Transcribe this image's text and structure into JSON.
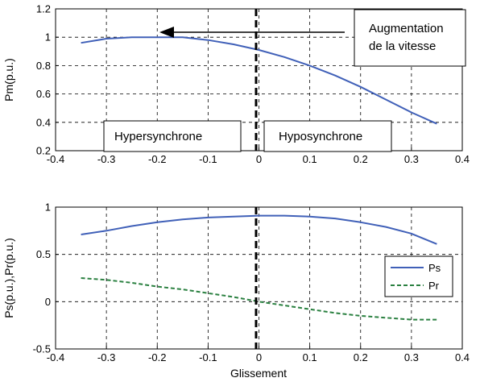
{
  "chart_data": [
    {
      "type": "line",
      "xlabel": "",
      "ylabel": "Pm(p.u.)",
      "xlim": [
        -0.4,
        0.4
      ],
      "ylim": [
        0.2,
        1.2
      ],
      "xticks": [
        "-0.4",
        "-0.3",
        "-0.2",
        "-0.1",
        "0",
        "0.1",
        "0.2",
        "0.3",
        "0.4"
      ],
      "yticks": [
        "0.2",
        "0.4",
        "0.6",
        "0.8",
        "1",
        "1.2"
      ],
      "grid": true,
      "series": [
        {
          "color": "#4060b8",
          "style": "solid",
          "x": [
            -0.35,
            -0.3,
            -0.25,
            -0.2,
            -0.15,
            -0.1,
            -0.05,
            0.0,
            0.05,
            0.1,
            0.15,
            0.2,
            0.25,
            0.3,
            0.35
          ],
          "y": [
            0.96,
            0.99,
            1.0,
            1.0,
            1.0,
            0.98,
            0.95,
            0.91,
            0.86,
            0.8,
            0.73,
            0.65,
            0.56,
            0.47,
            0.39
          ]
        }
      ],
      "annotations": {
        "speed_box": [
          "Augmentation",
          "de la vitesse"
        ],
        "left_region": "Hypersynchrone",
        "right_region": "Hyposynchrone"
      }
    },
    {
      "type": "line",
      "xlabel": "Glissement",
      "ylabel": "Ps(p.u.),Pr(p.u.)",
      "xlim": [
        -0.4,
        0.4
      ],
      "ylim": [
        -0.5,
        1.0
      ],
      "xticks": [
        "-0.4",
        "-0.3",
        "-0.2",
        "-0.1",
        "0",
        "0.1",
        "0.2",
        "0.3",
        "0.4"
      ],
      "yticks": [
        "-0.5",
        "0",
        "0.5",
        "1"
      ],
      "grid": true,
      "legend_position": "bottom-right",
      "series": [
        {
          "name": "Ps",
          "color": "#4060b8",
          "style": "solid",
          "x": [
            -0.35,
            -0.3,
            -0.25,
            -0.2,
            -0.15,
            -0.1,
            -0.05,
            0.0,
            0.05,
            0.1,
            0.15,
            0.2,
            0.25,
            0.3,
            0.35
          ],
          "y": [
            0.71,
            0.75,
            0.8,
            0.84,
            0.87,
            0.89,
            0.9,
            0.91,
            0.91,
            0.9,
            0.88,
            0.84,
            0.79,
            0.72,
            0.61
          ]
        },
        {
          "name": "Pr",
          "color": "#2a8040",
          "style": "dashed",
          "x": [
            -0.35,
            -0.3,
            -0.25,
            -0.2,
            -0.15,
            -0.1,
            -0.05,
            0.0,
            0.05,
            0.1,
            0.15,
            0.2,
            0.25,
            0.3,
            0.35
          ],
          "y": [
            0.25,
            0.23,
            0.2,
            0.16,
            0.13,
            0.09,
            0.05,
            0.0,
            -0.04,
            -0.08,
            -0.12,
            -0.15,
            -0.17,
            -0.19,
            -0.19
          ]
        }
      ]
    }
  ]
}
